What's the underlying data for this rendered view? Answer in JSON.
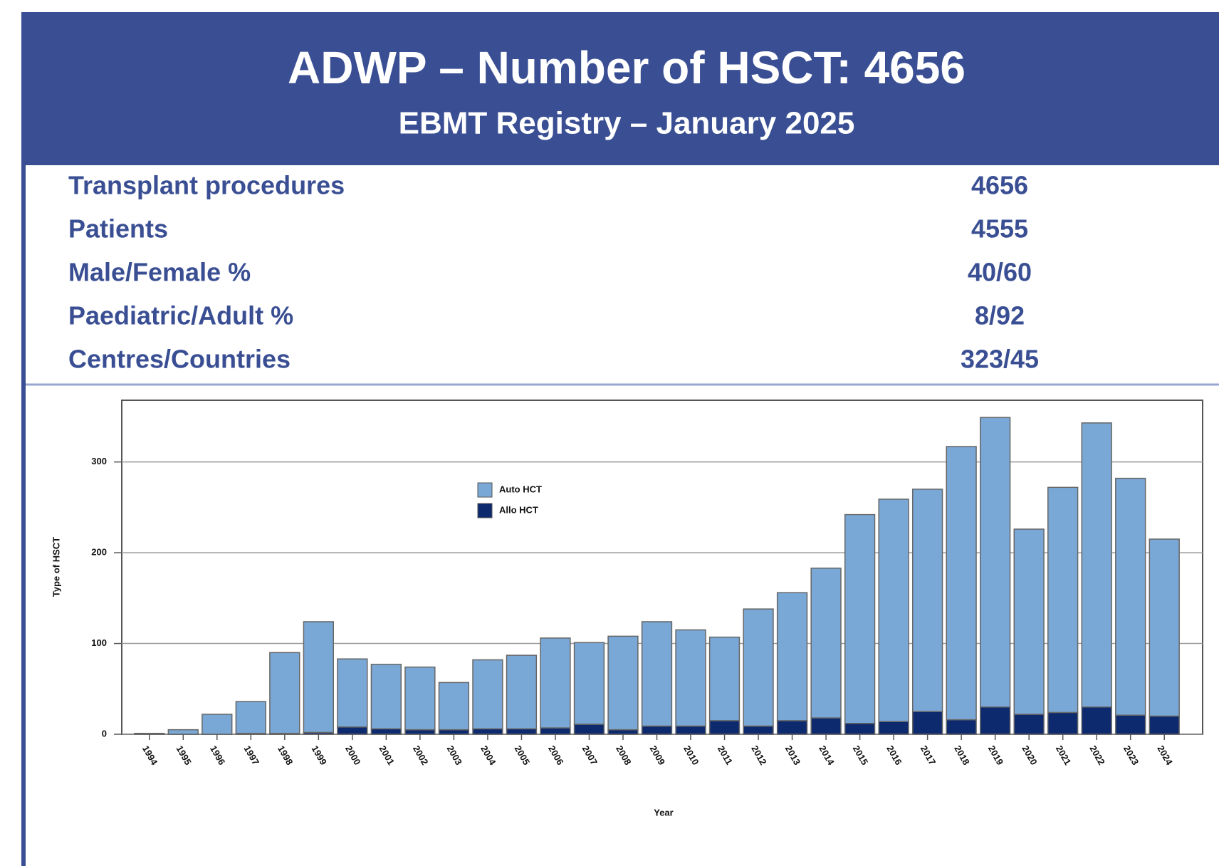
{
  "header": {
    "title": "ADWP – Number of HSCT: 4656",
    "subtitle": "EBMT Registry – January 2025"
  },
  "stats": [
    {
      "label": "Transplant procedures",
      "value": "4656"
    },
    {
      "label": "Patients",
      "value": "4555"
    },
    {
      "label": "Male/Female %",
      "value": "40/60"
    },
    {
      "label": "Paediatric/Adult %",
      "value": "8/92"
    },
    {
      "label": "Centres/Countries",
      "value": "323/45"
    }
  ],
  "chart_data": {
    "type": "stacked_bar",
    "x_label": "Year",
    "y_label": "Type of HSCT",
    "categories": [
      "1994",
      "1995",
      "1996",
      "1997",
      "1998",
      "1999",
      "2000",
      "2001",
      "2002",
      "2003",
      "2004",
      "2005",
      "2006",
      "2007",
      "2008",
      "2009",
      "2010",
      "2011",
      "2012",
      "2013",
      "2014",
      "2015",
      "2016",
      "2017",
      "2018",
      "2019",
      "2020",
      "2021",
      "2022",
      "2023",
      "2024"
    ],
    "series": [
      {
        "name": "Auto HCT",
        "color": "#7aa8d6",
        "values": [
          1,
          5,
          22,
          35,
          89,
          122,
          75,
          71,
          69,
          52,
          76,
          81,
          99,
          90,
          103,
          115,
          106,
          92,
          129,
          141,
          165,
          230,
          245,
          245,
          301,
          319,
          204,
          248,
          313,
          261,
          195
        ]
      },
      {
        "name": "Allo HCT",
        "color": "#0d2a6e",
        "values": [
          0,
          0,
          0,
          1,
          1,
          2,
          8,
          6,
          5,
          5,
          6,
          6,
          7,
          11,
          5,
          9,
          9,
          15,
          9,
          15,
          18,
          12,
          14,
          25,
          16,
          30,
          22,
          24,
          30,
          21,
          20
        ]
      }
    ],
    "ylim": [
      0,
      368
    ],
    "yticks": [
      0,
      100,
      200,
      300
    ],
    "grid": true,
    "legend": "top-center"
  }
}
